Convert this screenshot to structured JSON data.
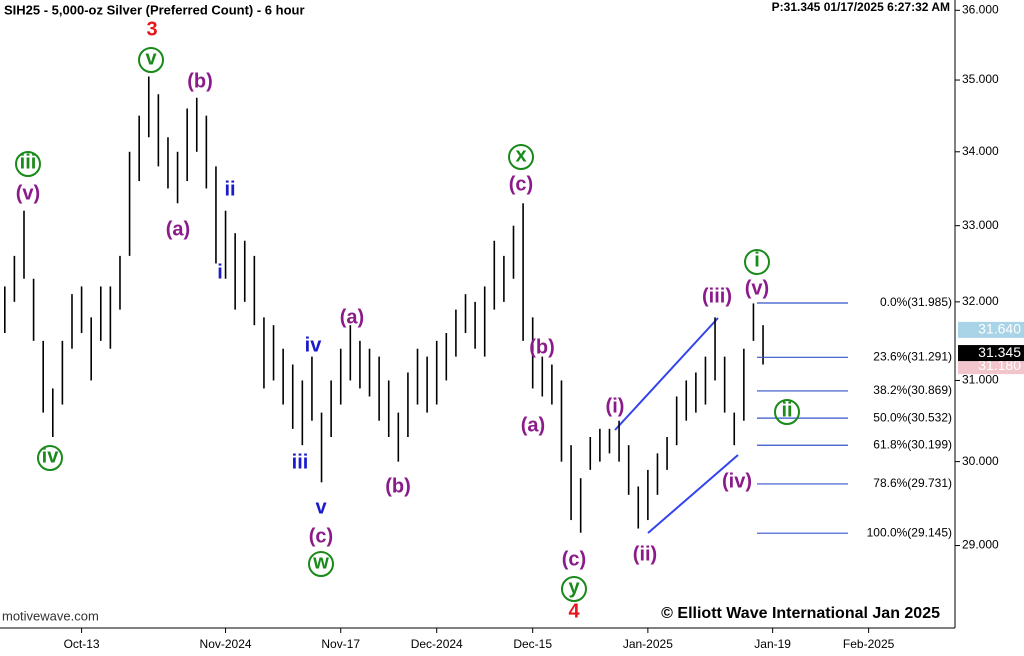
{
  "chart_data": {
    "type": "ohlc",
    "title": "SIH25 - 5,000-oz Silver (Preferred Count) - 6 hour",
    "status": "P:31.345  01/17/2025 6:27:32 AM",
    "watermark": "motivewave.com",
    "copyright": "© Elliott Wave International Jan 2025",
    "log_scale": true,
    "color": "#000000",
    "high": [
      32.2,
      32.6,
      33.2,
      32.3,
      31.5,
      30.9,
      31.5,
      32.1,
      32.2,
      31.8,
      32.2,
      32.2,
      32.6,
      34.0,
      34.5,
      35.05,
      34.8,
      34.2,
      34.0,
      34.6,
      34.75,
      34.5,
      33.8,
      33.2,
      32.9,
      32.8,
      32.6,
      31.8,
      31.7,
      31.4,
      31.2,
      31.0,
      31.3,
      30.6,
      31.0,
      31.4,
      31.7,
      31.5,
      31.4,
      31.3,
      31.0,
      30.6,
      31.1,
      31.4,
      31.3,
      31.5,
      31.6,
      31.9,
      32.1,
      32.0,
      32.2,
      32.8,
      32.6,
      33.0,
      33.3,
      31.8,
      31.3,
      31.2,
      31.0,
      30.2,
      29.8,
      30.3,
      30.4,
      30.4,
      30.5,
      30.2,
      29.7,
      29.9,
      30.1,
      30.3,
      30.8,
      31.0,
      31.1,
      31.3,
      31.8,
      31.3,
      30.6,
      31.4,
      31.98,
      31.7
    ],
    "low": [
      31.6,
      32.0,
      32.3,
      31.5,
      30.6,
      30.3,
      30.7,
      31.4,
      31.6,
      31.0,
      31.5,
      31.4,
      31.9,
      32.6,
      33.6,
      34.2,
      33.8,
      33.5,
      33.3,
      33.6,
      34.0,
      33.5,
      32.5,
      32.3,
      31.9,
      32.0,
      31.7,
      30.9,
      31.0,
      30.7,
      30.4,
      30.2,
      30.5,
      29.75,
      30.3,
      30.7,
      31.0,
      30.9,
      30.8,
      30.5,
      30.3,
      30.0,
      30.3,
      30.7,
      30.6,
      30.7,
      31.0,
      31.3,
      31.6,
      31.4,
      31.3,
      31.9,
      32.0,
      32.3,
      31.5,
      30.9,
      30.8,
      30.7,
      30.0,
      29.3,
      29.15,
      29.9,
      30.0,
      30.1,
      30.0,
      29.6,
      29.2,
      29.3,
      29.6,
      29.9,
      30.2,
      30.5,
      30.6,
      30.7,
      31.0,
      30.6,
      30.2,
      30.5,
      31.5,
      31.2
    ],
    "xlim": [
      -0.5,
      99
    ],
    "xticks": [
      {
        "value": 8,
        "label": "Oct-13"
      },
      {
        "value": 23,
        "label": "Nov-2024"
      },
      {
        "value": 35,
        "label": "Nov-17"
      },
      {
        "value": 45,
        "label": "Dec-2024"
      },
      {
        "value": 55,
        "label": "Dec-15"
      },
      {
        "value": 67,
        "label": "Jan-2025"
      },
      {
        "value": 80,
        "label": "Jan-19"
      },
      {
        "value": 90,
        "label": "Feb-2025"
      }
    ],
    "ylim": [
      28.05,
      36.15
    ],
    "yticks": [
      {
        "value": 29,
        "label": "29.000"
      },
      {
        "value": 30,
        "label": "30.000"
      },
      {
        "value": 31,
        "label": "31.000"
      },
      {
        "value": 32,
        "label": "32.000"
      },
      {
        "value": 33,
        "label": "33.000"
      },
      {
        "value": 34,
        "label": "34.000"
      },
      {
        "value": 35,
        "label": "35.000"
      },
      {
        "value": 36,
        "label": "36.000"
      }
    ],
    "fib_levels": [
      {
        "value": 31.985,
        "label": "0.0%(31.985)"
      },
      {
        "value": 31.291,
        "label": "23.6%(31.291)"
      },
      {
        "value": 30.869,
        "label": "38.2%(30.869)"
      },
      {
        "value": 30.532,
        "label": "50.0%(30.532)"
      },
      {
        "value": 30.199,
        "label": "61.8%(30.199)"
      },
      {
        "value": 29.731,
        "label": "78.6%(29.731)"
      },
      {
        "value": 29.145,
        "label": "100.0%(29.145)"
      }
    ],
    "price_markers": [
      {
        "value": 31.64,
        "label": "31.640",
        "color": "#a9d3e6"
      },
      {
        "value": 31.18,
        "label": "31.180",
        "color": "#f2c4cc"
      },
      {
        "value": 31.345,
        "label": "31.345",
        "color": "#000000"
      }
    ],
    "annotations": [
      {
        "text": "3",
        "color": "#e8141c",
        "circled": false
      },
      {
        "text": "v",
        "color": "#1a8a1a",
        "circled": true
      },
      {
        "text": "(b)",
        "color": "#8b1a8b",
        "circled": false
      },
      {
        "text": "iii",
        "color": "#1a8a1a",
        "circled": true
      },
      {
        "text": "(v)",
        "color": "#8b1a8b",
        "circled": false
      },
      {
        "text": "(a)",
        "color": "#8b1a8b",
        "circled": false
      },
      {
        "text": "ii",
        "color": "#1a1acc",
        "circled": false
      },
      {
        "text": "i",
        "color": "#1a1acc",
        "circled": false
      },
      {
        "text": "iv",
        "color": "#1a8a1a",
        "circled": true
      },
      {
        "text": "iv",
        "color": "#1a1acc",
        "circled": false
      },
      {
        "text": "(a)",
        "color": "#8b1a8b",
        "circled": false
      },
      {
        "text": "iii",
        "color": "#1a1acc",
        "circled": false
      },
      {
        "text": "v",
        "color": "#1a1acc",
        "circled": false
      },
      {
        "text": "(c)",
        "color": "#8b1a8b",
        "circled": false
      },
      {
        "text": "w",
        "color": "#1a8a1a",
        "circled": true
      },
      {
        "text": "(b)",
        "color": "#8b1a8b",
        "circled": false
      },
      {
        "text": "x",
        "color": "#1a8a1a",
        "circled": true
      },
      {
        "text": "(c)",
        "color": "#8b1a8b",
        "circled": false
      },
      {
        "text": "(b)",
        "color": "#8b1a8b",
        "circled": false
      },
      {
        "text": "(a)",
        "color": "#8b1a8b",
        "circled": false
      },
      {
        "text": "(c)",
        "color": "#8b1a8b",
        "circled": false
      },
      {
        "text": "y",
        "color": "#1a8a1a",
        "circled": true
      },
      {
        "text": "4",
        "color": "#e8141c",
        "circled": false
      },
      {
        "text": "(i)",
        "color": "#8b1a8b",
        "circled": false
      },
      {
        "text": "(ii)",
        "color": "#8b1a8b",
        "circled": false
      },
      {
        "text": "(iii)",
        "color": "#8b1a8b",
        "circled": false
      },
      {
        "text": "(iv)",
        "color": "#8b1a8b",
        "circled": false
      },
      {
        "text": "i",
        "color": "#1a8a1a",
        "circled": true
      },
      {
        "text": "(v)",
        "color": "#8b1a8b",
        "circled": false
      },
      {
        "text": "ii",
        "color": "#1a8a1a",
        "circled": true
      }
    ]
  }
}
